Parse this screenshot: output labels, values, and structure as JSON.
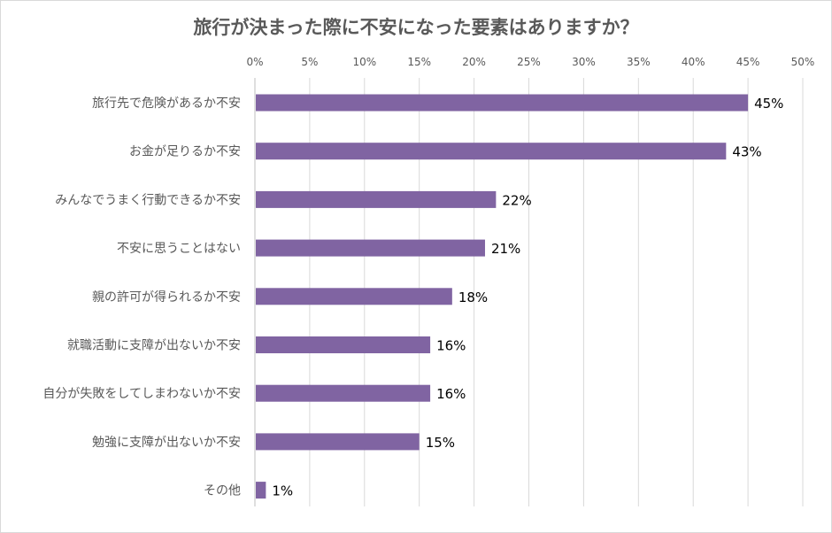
{
  "chart_data": {
    "type": "bar",
    "orientation": "horizontal",
    "title": "旅行が決まった際に不安になった要素はありますか？",
    "categories": [
      "旅行先で危険があるか不安",
      "お金が足りるか不安",
      "みんなでうまく行動できるか不安",
      "不安に思うことはない",
      "親の許可が得られるか不安",
      "就職活動に支障が出ないか不安",
      "自分が失敗をしてしまわないか不安",
      "勉強に支障が出ないか不安",
      "その他"
    ],
    "values": [
      45,
      43,
      22,
      21,
      18,
      16,
      16,
      15,
      1
    ],
    "data_labels": [
      "45%",
      "43%",
      "22%",
      "21%",
      "18%",
      "16%",
      "16%",
      "15%",
      "1%"
    ],
    "xlim": [
      0,
      50
    ],
    "x_ticks": [
      "0%",
      "5%",
      "10%",
      "15%",
      "20%",
      "25%",
      "30%",
      "35%",
      "40%",
      "45%",
      "50%"
    ],
    "x_axis_position": "top",
    "grid": true,
    "legend": "none",
    "bar_color": "#8064a2"
  }
}
